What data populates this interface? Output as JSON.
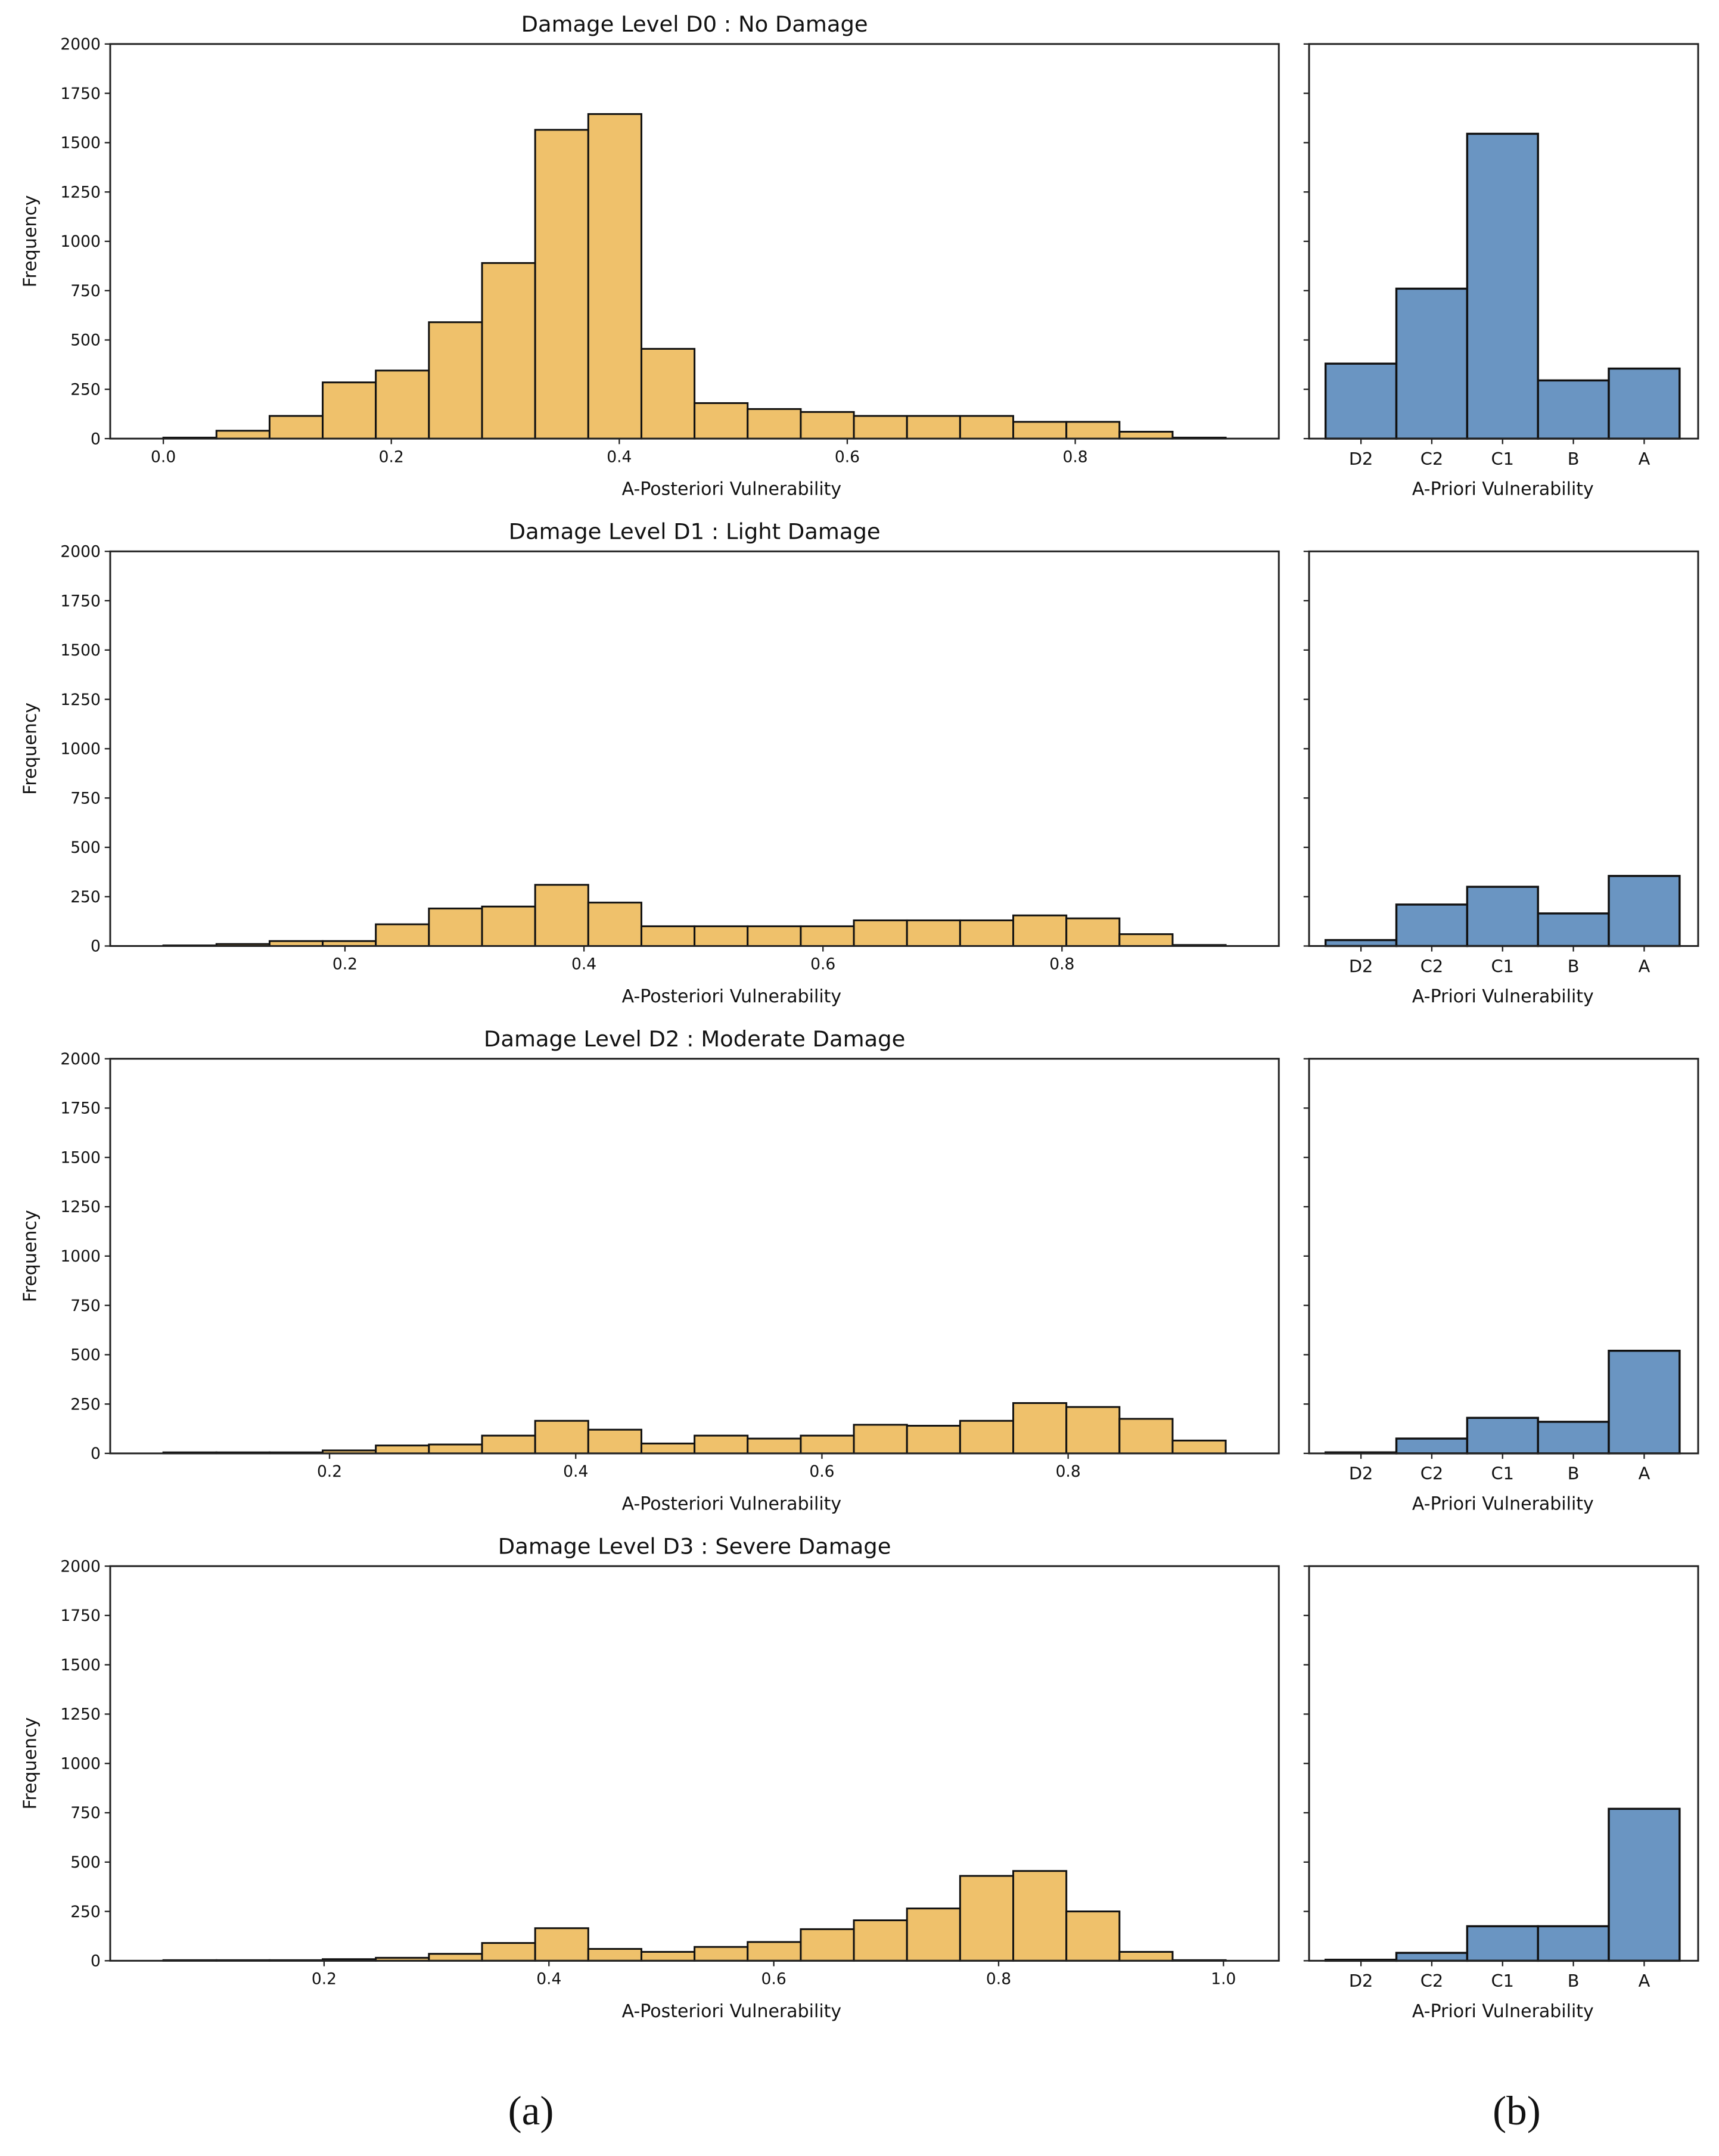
{
  "colors": {
    "histogram": "#EFC16B",
    "bar": "#6A95C2",
    "edge": "#111111"
  },
  "captions": {
    "left": "(a)",
    "right": "(b)"
  },
  "chart_data": [
    {
      "type": "bar",
      "title": "Damage Level D0 : No Damage",
      "histogram": {
        "xlabel": "A-Posteriori Vulnerability",
        "ylabel": "Frequency",
        "bin_range": [
          0.0,
          0.932
        ],
        "values": [
          5,
          40,
          115,
          285,
          345,
          590,
          890,
          1565,
          1645,
          455,
          180,
          150,
          135,
          115,
          115,
          115,
          85,
          85,
          35,
          5
        ],
        "xticks": [
          "0.0",
          "0.2",
          "0.4",
          "0.6",
          "0.8"
        ],
        "yticks": [
          "0",
          "250",
          "500",
          "750",
          "1000",
          "1250",
          "1500",
          "1750",
          "2000"
        ],
        "ylim": [
          0,
          2000
        ]
      },
      "apriori": {
        "xlabel": "A-Priori Vulnerability",
        "categories": [
          "D2",
          "C2",
          "C1",
          "B",
          "A"
        ],
        "values": [
          380,
          760,
          1545,
          295,
          355
        ],
        "ylim": [
          0,
          2000
        ]
      }
    },
    {
      "type": "bar",
      "title": "Damage Level D1 : Light Damage",
      "histogram": {
        "xlabel": "A-Posteriori Vulnerability",
        "ylabel": "Frequency",
        "bin_range": [
          0.048,
          0.937
        ],
        "values": [
          3,
          10,
          25,
          25,
          110,
          190,
          200,
          310,
          220,
          100,
          100,
          100,
          100,
          130,
          130,
          130,
          155,
          140,
          60,
          5
        ],
        "xticks": [
          "0.2",
          "0.4",
          "0.6",
          "0.8"
        ],
        "yticks": [
          "0",
          "250",
          "500",
          "750",
          "1000",
          "1250",
          "1500",
          "1750",
          "2000"
        ],
        "ylim": [
          0,
          2000
        ]
      },
      "apriori": {
        "xlabel": "A-Priori Vulnerability",
        "categories": [
          "D2",
          "C2",
          "C1",
          "B",
          "A"
        ],
        "values": [
          30,
          210,
          300,
          165,
          355
        ],
        "ylim": [
          0,
          2000
        ]
      }
    },
    {
      "type": "bar",
      "title": "Damage Level D2 : Moderate Damage",
      "histogram": {
        "xlabel": "A-Posteriori Vulnerability",
        "ylabel": "Frequency",
        "bin_range": [
          0.065,
          0.928
        ],
        "values": [
          5,
          5,
          5,
          15,
          40,
          45,
          90,
          165,
          120,
          50,
          90,
          75,
          90,
          145,
          140,
          165,
          255,
          235,
          175,
          65
        ],
        "xticks": [
          "0.2",
          "0.4",
          "0.6",
          "0.8"
        ],
        "yticks": [
          "0",
          "250",
          "500",
          "750",
          "1000",
          "1250",
          "1500",
          "1750",
          "2000"
        ],
        "ylim": [
          0,
          2000
        ]
      },
      "apriori": {
        "xlabel": "A-Priori Vulnerability",
        "categories": [
          "D2",
          "C2",
          "C1",
          "B",
          "A"
        ],
        "values": [
          5,
          75,
          180,
          160,
          520
        ],
        "ylim": [
          0,
          2000
        ]
      }
    },
    {
      "type": "bar",
      "title": "Damage Level D3 : Severe Damage",
      "histogram": {
        "xlabel": "A-Posteriori Vulnerability",
        "ylabel": "Frequency",
        "bin_range": [
          0.057,
          1.002
        ],
        "values": [
          3,
          3,
          3,
          8,
          15,
          35,
          90,
          165,
          60,
          45,
          70,
          95,
          160,
          205,
          265,
          430,
          455,
          250,
          45,
          3
        ],
        "xticks": [
          "0.2",
          "0.4",
          "0.6",
          "0.8",
          "1.0"
        ],
        "yticks": [
          "0",
          "250",
          "500",
          "750",
          "1000",
          "1250",
          "1500",
          "1750",
          "2000"
        ],
        "ylim": [
          0,
          2000
        ]
      },
      "apriori": {
        "xlabel": "A-Priori Vulnerability",
        "categories": [
          "D2",
          "C2",
          "C1",
          "B",
          "A"
        ],
        "values": [
          5,
          40,
          175,
          175,
          770
        ],
        "ylim": [
          0,
          2000
        ]
      }
    }
  ]
}
